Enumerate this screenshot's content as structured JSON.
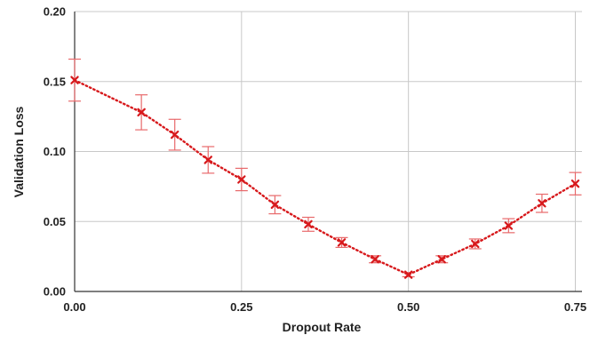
{
  "chart_data": {
    "type": "line",
    "xlabel": "Dropout Rate",
    "ylabel": "Validation Loss",
    "xlim": [
      0,
      0.76
    ],
    "ylim": [
      0,
      0.2
    ],
    "x_ticks": [
      0,
      0.25,
      0.5,
      0.75
    ],
    "x_tick_labels": [
      "0.00",
      "0.25",
      "0.50",
      "0.75"
    ],
    "y_ticks": [
      0,
      0.05,
      0.1,
      0.15,
      0.2
    ],
    "y_tick_labels": [
      "0.00",
      "0.05",
      "0.10",
      "0.15",
      "0.20"
    ],
    "grid": true,
    "line_style": "dotted",
    "marker": "x",
    "color": "#d7191c",
    "error_bar_color": "#e8696b",
    "series": [
      {
        "x": [
          0.0,
          0.1,
          0.15,
          0.2,
          0.25,
          0.3,
          0.35,
          0.4,
          0.45,
          0.5,
          0.55,
          0.6,
          0.65,
          0.7,
          0.75
        ],
        "y": [
          0.151,
          0.128,
          0.112,
          0.094,
          0.08,
          0.062,
          0.048,
          0.035,
          0.023,
          0.012,
          0.023,
          0.034,
          0.047,
          0.063,
          0.077
        ],
        "error": [
          0.015,
          0.0125,
          0.011,
          0.0095,
          0.008,
          0.0065,
          0.005,
          0.0035,
          0.0025,
          0.0015,
          0.0025,
          0.0035,
          0.005,
          0.0065,
          0.008
        ]
      }
    ]
  }
}
